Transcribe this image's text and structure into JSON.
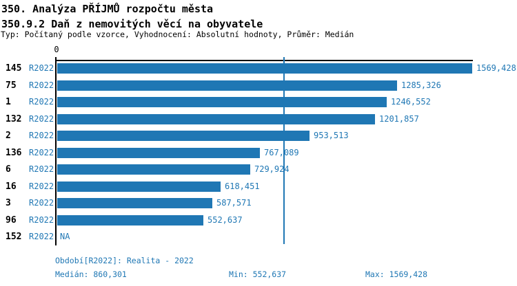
{
  "header": {
    "title": "350. Analýza PŘÍJMŮ rozpočtu města",
    "subtitle": "350.9.2 Daň z nemovitých věcí na obyvatele",
    "meta": "Typ: Počítaný podle vzorce, Vyhodnocení: Absolutní hodnoty, Průměr: Medián"
  },
  "chart_data": {
    "type": "bar",
    "orientation": "horizontal",
    "title": "350.9.2 Daň z nemovitých věcí na obyvatele",
    "axis_zero_label": "0",
    "xlim": [
      0,
      1569.428
    ],
    "median": 860.301,
    "bar_color": "#1f77b4",
    "grid": false,
    "rows": [
      {
        "rank": "145",
        "period": "R2022",
        "value": 1569.428,
        "label": "1569,428"
      },
      {
        "rank": "75",
        "period": "R2022",
        "value": 1285.326,
        "label": "1285,326"
      },
      {
        "rank": "1",
        "period": "R2022",
        "value": 1246.552,
        "label": "1246,552"
      },
      {
        "rank": "132",
        "period": "R2022",
        "value": 1201.857,
        "label": "1201,857"
      },
      {
        "rank": "2",
        "period": "R2022",
        "value": 953.513,
        "label": "953,513"
      },
      {
        "rank": "136",
        "period": "R2022",
        "value": 767.089,
        "label": "767,089"
      },
      {
        "rank": "6",
        "period": "R2022",
        "value": 729.924,
        "label": "729,924"
      },
      {
        "rank": "16",
        "period": "R2022",
        "value": 618.451,
        "label": "618,451"
      },
      {
        "rank": "3",
        "period": "R2022",
        "value": 587.571,
        "label": "587,571"
      },
      {
        "rank": "96",
        "period": "R2022",
        "value": 552.637,
        "label": "552,637"
      },
      {
        "rank": "152",
        "period": "R2022",
        "value": null,
        "label": "NA"
      }
    ]
  },
  "footer": {
    "period_line": "Období[R2022]: Realita - 2022",
    "median_label": "Medián: 860,301",
    "min_label": "Min: 552,637",
    "max_label": "Max: 1569,428"
  }
}
